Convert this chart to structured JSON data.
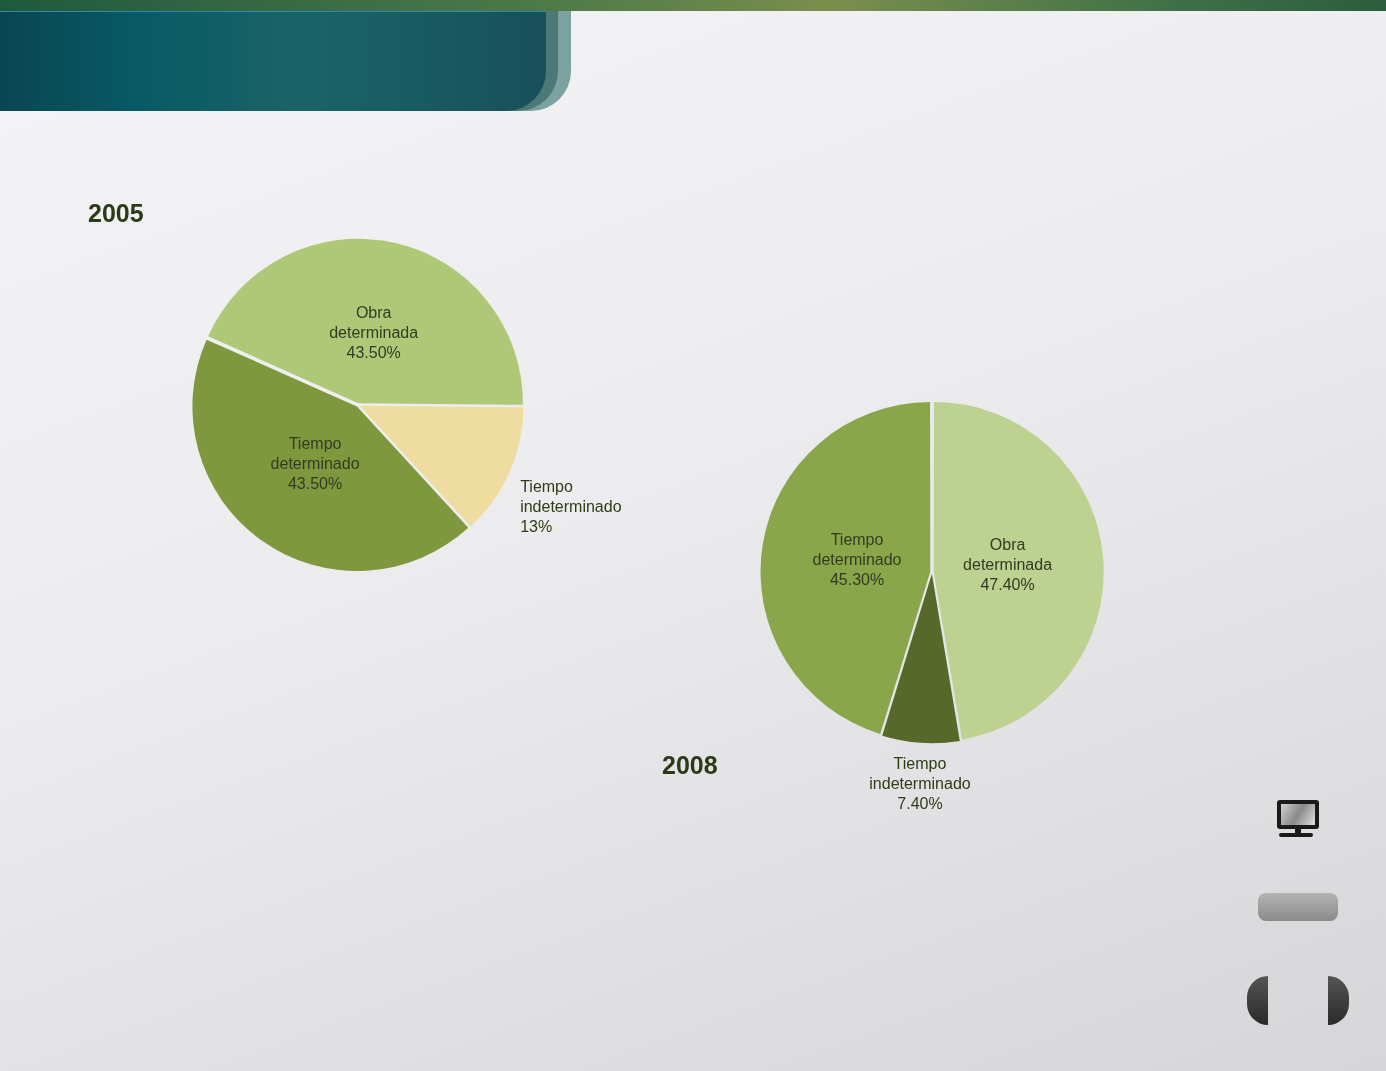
{
  "chart_data": [
    {
      "type": "pie",
      "title": "2005",
      "categories": [
        "Obra determinada",
        "Tiempo indeterminado",
        "Tiempo determinado"
      ],
      "values": [
        43.5,
        13,
        43.5
      ],
      "colors": [
        "#afc878",
        "#efdca0",
        "#7f983e"
      ],
      "value_labels": [
        "43.50%",
        "13%",
        "43.50%"
      ]
    },
    {
      "type": "pie",
      "title": "2008",
      "categories": [
        "Obra determinada",
        "Tiempo indeterminado",
        "Tiempo determinado"
      ],
      "values": [
        47.4,
        7.4,
        45.3
      ],
      "colors": [
        "#bdd191",
        "#56692a",
        "#8aa64a"
      ],
      "value_labels": [
        "47.40%",
        "7.40%",
        "45.30%"
      ]
    }
  ]
}
